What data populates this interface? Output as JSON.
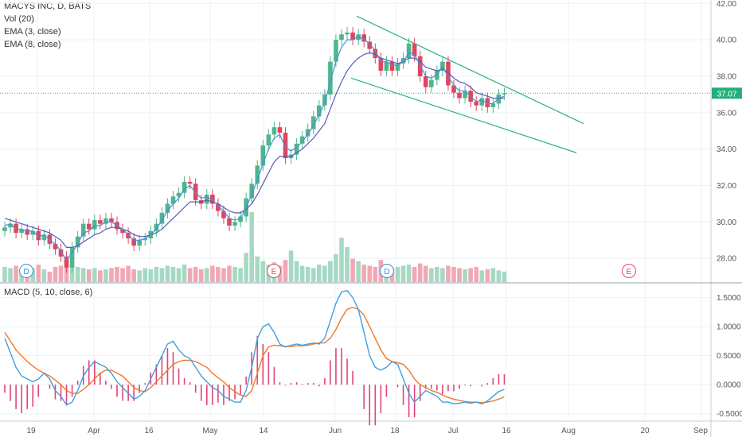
{
  "legend": {
    "symbol": "MACYS INC, D, BATS",
    "vol": "Vol (20)",
    "ema3": "EMA (3, close)",
    "ema8": "EMA (8, close)"
  },
  "macd_legend": "MACD (5, 10, close, 6)",
  "price_label": "37.07",
  "markers": {
    "dividend": "D",
    "earnings": "E"
  },
  "colors": {
    "up": "#4db68c",
    "down": "#e0455f",
    "vol_up": "#a6d9c4",
    "vol_down": "#f2a8b4",
    "ema_fast": "#4a90d9",
    "ema_slow": "#5a5ab8",
    "macd": "#3f9fe0",
    "signal": "#f0782b",
    "hist": "#e0447a",
    "trendline": "#2fb27f",
    "price_line": "#2fb27f",
    "grid": "#eef0f3"
  },
  "chart_data": [
    {
      "type": "candlestick",
      "title": "MACYS INC, D, BATS",
      "x_ticks": [
        "19",
        "Apr",
        "16",
        "May",
        "14",
        "Jun",
        "18",
        "Jul",
        "16",
        "Aug",
        "20",
        "Sep"
      ],
      "y_ticks": [
        "28.00",
        "30.00",
        "32.00",
        "34.00",
        "36.00",
        "38.00",
        "40.00",
        "42.00"
      ],
      "ylim": [
        26.7,
        42.1
      ],
      "last_price": 37.07,
      "close": [
        29.7,
        29.9,
        29.4,
        29.6,
        29.3,
        29.5,
        29.0,
        29.3,
        28.8,
        28.5,
        28.1,
        27.5,
        28.6,
        29.2,
        29.9,
        29.6,
        30.1,
        29.9,
        30.2,
        30.0,
        29.6,
        29.4,
        29.1,
        28.7,
        29.0,
        29.1,
        29.5,
        29.9,
        30.5,
        31.0,
        31.4,
        31.6,
        32.2,
        32.1,
        31.2,
        31.0,
        31.5,
        31.0,
        30.6,
        30.2,
        29.8,
        30.0,
        30.3,
        31.3,
        32.1,
        33.1,
        34.2,
        34.8,
        35.2,
        34.9,
        33.5,
        33.7,
        34.3,
        34.7,
        35.1,
        35.8,
        36.4,
        37.0,
        38.8,
        40.0,
        40.3,
        40.4,
        40.0,
        40.3,
        39.9,
        39.5,
        39.0,
        38.3,
        38.8,
        38.3,
        38.7,
        39.0,
        39.8,
        39.1,
        38.0,
        37.4,
        37.8,
        38.3,
        38.8,
        37.5,
        37.1,
        36.8,
        37.2,
        36.6,
        36.4,
        36.8,
        36.3,
        36.5,
        37.0,
        37.07
      ],
      "ema3": [
        29.8,
        29.9,
        29.6,
        29.6,
        29.5,
        29.5,
        29.2,
        29.3,
        29.0,
        28.8,
        28.4,
        27.9,
        28.3,
        28.8,
        29.4,
        29.5,
        29.8,
        29.8,
        30.0,
        30.0,
        29.8,
        29.6,
        29.3,
        29.0,
        29.0,
        29.1,
        29.3,
        29.6,
        30.1,
        30.6,
        31.0,
        31.3,
        31.8,
        32.0,
        31.6,
        31.3,
        31.4,
        31.2,
        30.9,
        30.6,
        30.2,
        30.1,
        30.2,
        30.8,
        31.5,
        32.3,
        33.2,
        34.0,
        34.6,
        34.8,
        34.1,
        33.9,
        34.1,
        34.4,
        34.8,
        35.3,
        35.9,
        36.5,
        37.7,
        38.8,
        39.6,
        40.0,
        40.0,
        40.2,
        40.0,
        39.8,
        39.4,
        38.8,
        38.8,
        38.6,
        38.6,
        38.8,
        39.3,
        39.2,
        38.6,
        38.0,
        37.9,
        38.1,
        38.5,
        38.0,
        37.5,
        37.2,
        37.2,
        36.9,
        36.6,
        36.7,
        36.5,
        36.5,
        36.8,
        36.9
      ],
      "ema8": [
        30.2,
        30.1,
        30.0,
        29.9,
        29.8,
        29.7,
        29.6,
        29.5,
        29.4,
        29.2,
        29.0,
        28.6,
        28.6,
        28.7,
        28.9,
        29.1,
        29.3,
        29.4,
        29.6,
        29.7,
        29.7,
        29.6,
        29.5,
        29.3,
        29.2,
        29.2,
        29.3,
        29.4,
        29.6,
        29.9,
        30.2,
        30.5,
        30.8,
        31.1,
        31.1,
        31.1,
        31.2,
        31.1,
        31.0,
        30.8,
        30.6,
        30.5,
        30.5,
        30.7,
        31.0,
        31.5,
        32.1,
        32.7,
        33.3,
        33.6,
        33.6,
        33.6,
        33.8,
        34.0,
        34.3,
        34.6,
        35.0,
        35.4,
        36.2,
        37.0,
        37.7,
        38.3,
        38.7,
        39.0,
        39.2,
        39.3,
        39.2,
        39.0,
        38.9,
        38.8,
        38.7,
        38.8,
        39.0,
        39.0,
        38.8,
        38.5,
        38.4,
        38.3,
        38.4,
        38.2,
        37.9,
        37.7,
        37.6,
        37.4,
        37.1,
        37.0,
        36.9,
        36.8,
        36.8,
        36.8
      ],
      "volume": [
        13,
        12,
        14,
        11,
        10,
        12,
        15,
        11,
        9,
        13,
        14,
        18,
        15,
        13,
        12,
        11,
        12,
        10,
        11,
        12,
        13,
        12,
        14,
        11,
        10,
        12,
        11,
        13,
        12,
        14,
        13,
        12,
        15,
        12,
        13,
        11,
        12,
        14,
        13,
        12,
        14,
        13,
        12,
        25,
        60,
        22,
        18,
        15,
        17,
        14,
        19,
        27,
        18,
        14,
        13,
        12,
        15,
        14,
        18,
        24,
        38,
        30,
        20,
        18,
        15,
        14,
        13,
        19,
        15,
        12,
        13,
        14,
        15,
        13,
        16,
        14,
        12,
        13,
        12,
        14,
        13,
        12,
        11,
        12,
        13,
        10,
        11,
        12,
        10,
        9
      ],
      "trend_upper": {
        "from": [
          "Jun 06",
          41.3
        ],
        "to": [
          "Aug 06",
          35.4
        ]
      },
      "trend_lower": {
        "from": [
          "Jun 01",
          37.9
        ],
        "to": [
          "Aug 03",
          33.8
        ]
      }
    },
    {
      "type": "line",
      "title": "MACD (5, 10, close, 6)",
      "y_ticks": [
        "-0.5000",
        "0.0000",
        "0.5000",
        "1.0000",
        "1.5000"
      ],
      "ylim": [
        -0.6,
        1.7
      ],
      "series": [
        {
          "name": "MACD",
          "values": [
            0.8,
            0.55,
            0.3,
            0.15,
            0.1,
            0.05,
            0.1,
            0.2,
            0.1,
            -0.1,
            -0.2,
            -0.35,
            -0.3,
            -0.1,
            0.15,
            0.3,
            0.4,
            0.35,
            0.3,
            0.2,
            0.05,
            -0.05,
            -0.15,
            -0.25,
            -0.2,
            -0.1,
            0.1,
            0.3,
            0.5,
            0.7,
            0.75,
            0.6,
            0.5,
            0.45,
            0.3,
            0.15,
            0.05,
            -0.05,
            -0.1,
            -0.2,
            -0.25,
            -0.3,
            -0.3,
            -0.1,
            0.3,
            0.8,
            1.0,
            1.05,
            0.9,
            0.7,
            0.65,
            0.68,
            0.7,
            0.68,
            0.7,
            0.72,
            0.7,
            0.8,
            1.1,
            1.4,
            1.6,
            1.62,
            1.5,
            1.3,
            0.9,
            0.5,
            0.3,
            0.25,
            0.3,
            0.4,
            0.35,
            0.1,
            -0.15,
            -0.3,
            -0.2,
            -0.1,
            -0.15,
            -0.2,
            -0.3,
            -0.3,
            -0.33,
            -0.32,
            -0.3,
            -0.32,
            -0.3,
            -0.33,
            -0.28,
            -0.2,
            -0.12,
            -0.08
          ]
        },
        {
          "name": "Signal",
          "values": [
            0.9,
            0.75,
            0.6,
            0.5,
            0.4,
            0.32,
            0.25,
            0.2,
            0.15,
            0.08,
            0.0,
            -0.1,
            -0.15,
            -0.15,
            -0.08,
            0.0,
            0.1,
            0.2,
            0.25,
            0.25,
            0.2,
            0.15,
            0.05,
            -0.05,
            -0.1,
            -0.12,
            -0.05,
            0.05,
            0.15,
            0.25,
            0.35,
            0.4,
            0.42,
            0.42,
            0.4,
            0.35,
            0.3,
            0.2,
            0.12,
            0.05,
            -0.05,
            -0.12,
            -0.18,
            -0.2,
            -0.1,
            0.2,
            0.5,
            0.65,
            0.68,
            0.67,
            0.66,
            0.66,
            0.67,
            0.67,
            0.68,
            0.7,
            0.72,
            0.72,
            0.8,
            0.95,
            1.15,
            1.3,
            1.33,
            1.3,
            1.2,
            1.0,
            0.8,
            0.6,
            0.45,
            0.4,
            0.38,
            0.35,
            0.25,
            0.1,
            0.0,
            -0.05,
            -0.1,
            -0.13,
            -0.18,
            -0.22,
            -0.25,
            -0.27,
            -0.29,
            -0.3,
            -0.3,
            -0.31,
            -0.3,
            -0.28,
            -0.25,
            -0.21
          ]
        }
      ]
    }
  ]
}
